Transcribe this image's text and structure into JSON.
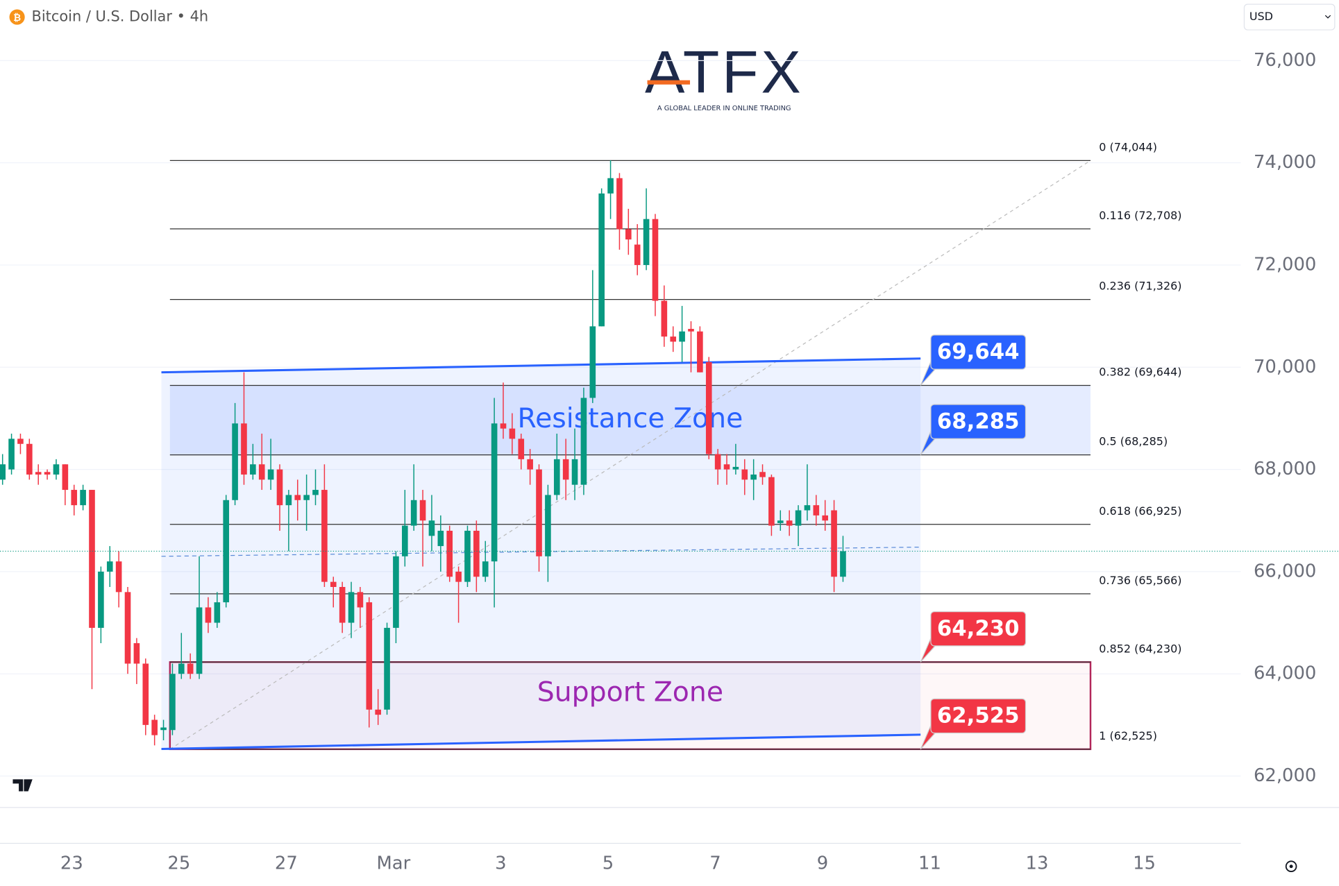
{
  "chart_data": {
    "type": "candlestick",
    "title": "Bitcoin / U.S. Dollar • 4h",
    "currency": "USD",
    "logo": "ATFX",
    "logo_tagline": "A GLOBAL LEADER IN ONLINE TRADING",
    "ylim": [
      61385,
      77186
    ],
    "yticks": [
      {
        "value": 62000,
        "label": "62,000"
      },
      {
        "value": 64000,
        "label": "64,000"
      },
      {
        "value": 66000,
        "label": "66,000"
      },
      {
        "value": 68000,
        "label": "68,000"
      },
      {
        "value": 70000,
        "label": "70,000"
      },
      {
        "value": 72000,
        "label": "72,000"
      },
      {
        "value": 74000,
        "label": "74,000"
      },
      {
        "value": 76000,
        "label": "76,000"
      }
    ],
    "xtick_labels": [
      "23",
      "25",
      "27",
      "Mar",
      "3",
      "5",
      "7",
      "9",
      "11",
      "13",
      "15"
    ],
    "up_color": "#089981",
    "down_color": "#f23645",
    "candles": [
      [
        67800,
        68300,
        67700,
        68100
      ],
      [
        68000,
        68700,
        67900,
        68600
      ],
      [
        68600,
        68700,
        68300,
        68500
      ],
      [
        68500,
        68600,
        67800,
        67900
      ],
      [
        67950,
        68100,
        67700,
        67900
      ],
      [
        67950,
        68000,
        67800,
        67900
      ],
      [
        67900,
        68200,
        67800,
        68100
      ],
      [
        68100,
        68100,
        67300,
        67600
      ],
      [
        67600,
        67700,
        67100,
        67300
      ],
      [
        67300,
        67700,
        67200,
        67600
      ],
      [
        67600,
        67600,
        63700,
        64900
      ],
      [
        64900,
        66100,
        64600,
        66000
      ],
      [
        66000,
        66500,
        65700,
        66200
      ],
      [
        66200,
        66400,
        65300,
        65600
      ],
      [
        65600,
        65700,
        64000,
        64200
      ],
      [
        64600,
        64700,
        63800,
        64200
      ],
      [
        64200,
        64300,
        62800,
        63000
      ],
      [
        63100,
        63200,
        62600,
        62800
      ],
      [
        62900,
        63100,
        62700,
        62950
      ],
      [
        62900,
        64200,
        62800,
        64000
      ],
      [
        64000,
        64800,
        63900,
        64200
      ],
      [
        64200,
        64400,
        63900,
        64000
      ],
      [
        64000,
        66300,
        63900,
        65300
      ],
      [
        65300,
        65500,
        64800,
        65000
      ],
      [
        65000,
        65600,
        64900,
        65400
      ],
      [
        65400,
        67500,
        65300,
        67400
      ],
      [
        67400,
        69300,
        67300,
        68900
      ],
      [
        68900,
        69900,
        67700,
        67900
      ],
      [
        67900,
        68500,
        67800,
        68100
      ],
      [
        68100,
        68700,
        67600,
        67800
      ],
      [
        67800,
        68600,
        67600,
        68000
      ],
      [
        68000,
        68100,
        66800,
        67300
      ],
      [
        67300,
        67600,
        66400,
        67500
      ],
      [
        67500,
        67800,
        67000,
        67400
      ],
      [
        67400,
        67900,
        66800,
        67500
      ],
      [
        67500,
        68000,
        67300,
        67600
      ],
      [
        67600,
        68100,
        65700,
        65800
      ],
      [
        65800,
        65900,
        65300,
        65700
      ],
      [
        65700,
        65800,
        64800,
        65000
      ],
      [
        65000,
        65800,
        64700,
        65600
      ],
      [
        65600,
        65700,
        64900,
        65300
      ],
      [
        65400,
        65500,
        62950,
        63300
      ],
      [
        63300,
        63700,
        63000,
        63200
      ],
      [
        63300,
        65000,
        63200,
        64900
      ],
      [
        64900,
        66400,
        64600,
        66300
      ],
      [
        66300,
        67600,
        66100,
        66900
      ],
      [
        66900,
        68100,
        66800,
        67400
      ],
      [
        67400,
        67600,
        66100,
        67000
      ],
      [
        66700,
        67500,
        66400,
        67000
      ],
      [
        66500,
        67100,
        66000,
        66800
      ],
      [
        66800,
        66900,
        65800,
        65900
      ],
      [
        66000,
        66100,
        65000,
        65800
      ],
      [
        65800,
        66900,
        65700,
        66800
      ],
      [
        66800,
        67000,
        65600,
        65900
      ],
      [
        65900,
        66600,
        65800,
        66200
      ],
      [
        66200,
        69400,
        65300,
        68900
      ],
      [
        68900,
        69700,
        68600,
        68800
      ],
      [
        68800,
        69100,
        68300,
        68600
      ],
      [
        68600,
        68700,
        68000,
        68200
      ],
      [
        68200,
        68400,
        67700,
        68000
      ],
      [
        68000,
        68100,
        66000,
        66300
      ],
      [
        66300,
        67700,
        65800,
        67500
      ],
      [
        67500,
        68700,
        67400,
        68200
      ],
      [
        68200,
        68600,
        67400,
        67800
      ],
      [
        67700,
        68800,
        67400,
        68200
      ],
      [
        67700,
        69600,
        67500,
        69400
      ],
      [
        69400,
        71900,
        69300,
        70800
      ],
      [
        70800,
        73500,
        70800,
        73400
      ],
      [
        73400,
        74050,
        72900,
        73700
      ],
      [
        73700,
        73800,
        72300,
        72700
      ],
      [
        72700,
        73100,
        72200,
        72500
      ],
      [
        72400,
        72800,
        71800,
        72000
      ],
      [
        72000,
        73500,
        71900,
        72900
      ],
      [
        72900,
        73000,
        71000,
        71300
      ],
      [
        71300,
        71600,
        70400,
        70600
      ],
      [
        70600,
        70800,
        70300,
        70500
      ],
      [
        70500,
        71200,
        70100,
        70700
      ],
      [
        70750,
        70900,
        69900,
        70700
      ],
      [
        70700,
        70800,
        69900,
        69900
      ],
      [
        70100,
        70200,
        68200,
        68300
      ],
      [
        68300,
        68400,
        67700,
        68000
      ],
      [
        68100,
        68300,
        67700,
        68000
      ],
      [
        68000,
        68500,
        67900,
        68050
      ],
      [
        68000,
        68200,
        67500,
        67800
      ],
      [
        67800,
        68200,
        67400,
        67900
      ],
      [
        67950,
        68100,
        67700,
        67850
      ],
      [
        67850,
        67900,
        66700,
        66900
      ],
      [
        66950,
        67200,
        66800,
        67000
      ],
      [
        67000,
        67200,
        66700,
        66900
      ],
      [
        66900,
        67300,
        66500,
        67200
      ],
      [
        67200,
        68100,
        67000,
        67300
      ],
      [
        67300,
        67500,
        66900,
        67100
      ],
      [
        67100,
        67400,
        66800,
        67000
      ],
      [
        67200,
        67400,
        65600,
        65900
      ],
      [
        65900,
        66700,
        65800,
        66400
      ]
    ],
    "fib_levels": [
      {
        "value": 74044,
        "label": "0 (74,044)"
      },
      {
        "value": 72708,
        "label": "0.116 (72,708)"
      },
      {
        "value": 71326,
        "label": "0.236 (71,326)"
      },
      {
        "value": 69644,
        "label": "0.382 (69,644)"
      },
      {
        "value": 68285,
        "label": "0.5 (68,285)"
      },
      {
        "value": 66925,
        "label": "0.618 (66,925)"
      },
      {
        "value": 65566,
        "label": "0.736 (65,566)"
      },
      {
        "value": 64230,
        "label": "0.852 (64,230)"
      },
      {
        "value": 62525,
        "label": "1 (62,525)"
      }
    ],
    "zones": [
      {
        "name": "Resistance Zone",
        "range": [
          68285,
          69644
        ],
        "color": "#2962ff"
      },
      {
        "name": "Support Zone",
        "range": [
          62525,
          64230
        ],
        "color": "#9c27b0"
      }
    ],
    "price_badges": [
      {
        "value": 69644,
        "label": "69,644",
        "color": "#2962ff"
      },
      {
        "value": 68285,
        "label": "68,285",
        "color": "#2962ff"
      },
      {
        "value": 64230,
        "label": "64,230",
        "color": "#f23645"
      },
      {
        "value": 62525,
        "label": "62,525",
        "color": "#f23645"
      }
    ],
    "channel": {
      "upper": [
        69900,
        70170
      ],
      "lower": [
        62530,
        62810
      ],
      "middle": [
        66300,
        66480
      ]
    }
  }
}
